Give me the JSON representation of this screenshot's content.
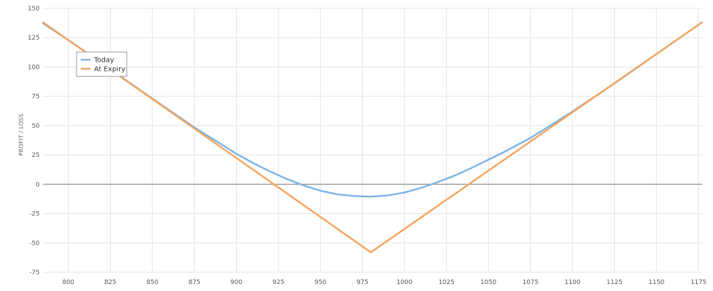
{
  "chart_data": {
    "type": "line",
    "title": "",
    "xlabel": "",
    "ylabel": "PROFIT / LOSS",
    "xlim": [
      785,
      1177
    ],
    "ylim": [
      -75,
      150
    ],
    "x_ticks": [
      800,
      825,
      850,
      875,
      900,
      925,
      950,
      975,
      1000,
      1025,
      1050,
      1075,
      1100,
      1125,
      1150,
      1175
    ],
    "y_ticks": [
      150,
      125,
      100,
      75,
      50,
      25,
      0,
      -25,
      -50,
      -75
    ],
    "grid": true,
    "zero_line": true,
    "legend_position": "top-left",
    "series": [
      {
        "name": "Today",
        "color": "#7db4e6",
        "x": [
          785,
          800,
          825,
          850,
          875,
          900,
          910,
          920,
          930,
          940,
          950,
          960,
          970,
          980,
          990,
          1000,
          1010,
          1020,
          1030,
          1040,
          1050,
          1060,
          1075,
          1100,
          1125,
          1150,
          1177
        ],
        "y": [
          137,
          123,
          98,
          73,
          48.5,
          26,
          18,
          11,
          4.5,
          -1,
          -5.5,
          -8.5,
          -10,
          -10.5,
          -9.5,
          -7,
          -3,
          2,
          7.5,
          14,
          21,
          28,
          39.5,
          62,
          86,
          111,
          138
        ]
      },
      {
        "name": "At Expiry",
        "color": "#f4a55f",
        "x": [
          785,
          980,
          1177
        ],
        "y": [
          138,
          -58,
          138
        ]
      }
    ]
  }
}
